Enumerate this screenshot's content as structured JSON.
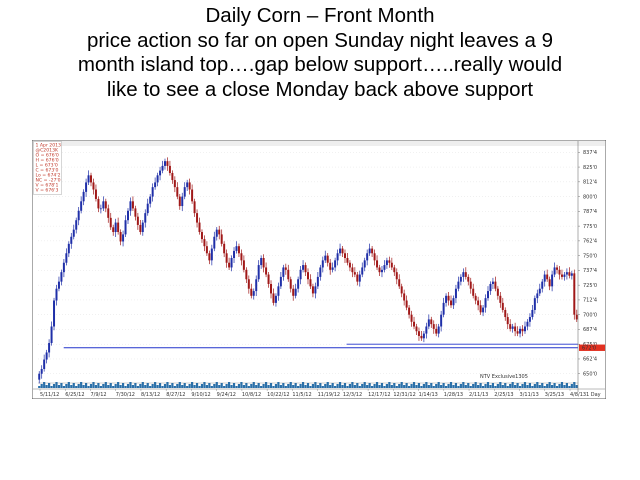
{
  "slide": {
    "title_lines": [
      "Daily Corn – Front Month",
      "price action so far on open Sunday night leaves a 9",
      "month island top….gap below support…..really would",
      "like to see a close Monday back above support"
    ]
  },
  "chart_data": {
    "type": "candlestick",
    "title": "",
    "xlabel": "",
    "ylabel": "",
    "info_box": [
      "1 Apr 2013",
      "@C2013K",
      "O = 676'0",
      "H = 676'0",
      "L = 673'0",
      "C = 673'0",
      "Lo = 674'2",
      "NC = -27'0",
      "V = 678'1",
      "V = 676'3"
    ],
    "y_ticks": [
      "837'4",
      "825'0",
      "812'4",
      "800'0",
      "787'4",
      "775'0",
      "762'4",
      "750'0",
      "737'4",
      "725'0",
      "712'4",
      "700'0",
      "687'4",
      "675'0",
      "662'4",
      "650'0"
    ],
    "ylim": [
      643,
      842
    ],
    "current_price_label": "672'0",
    "x_tick_labels": [
      "5/11/12",
      "6/25/12",
      "7/9/12",
      "7/30/12",
      "8/13/12",
      "8/27/12",
      "9/10/12",
      "9/24/12",
      "10/8/12",
      "10/22/12",
      "11/5/12",
      "11/19/12",
      "12/3/12",
      "12/17/12",
      "12/31/12",
      "1/14/13",
      "1/28/13",
      "2/11/13",
      "2/25/13",
      "3/11/13",
      "3/25/13",
      "4/8/13"
    ],
    "period_label": "1 Day",
    "watermark": "NTV Exclusive1305",
    "support_levels": [
      {
        "from": "6/25/12",
        "to": "4/8/13",
        "price": 672
      },
      {
        "from": "12/3/12",
        "to": "4/8/13",
        "price": 675
      }
    ],
    "colors": {
      "up": "#1f2fa8",
      "down": "#a01818",
      "support": "#2233cc",
      "price_tag": "#e23020",
      "volume": "#2a6fa8",
      "grid": "#dcdcdc"
    },
    "series": {
      "dates_note": "daily bars approx. June 2012 – April 2013",
      "open": [
        645,
        650,
        654,
        662,
        668,
        676,
        690,
        712,
        722,
        728,
        736,
        744,
        752,
        760,
        766,
        772,
        780,
        788,
        796,
        804,
        812,
        818,
        812,
        806,
        798,
        790,
        790,
        796,
        790,
        782,
        774,
        770,
        778,
        770,
        762,
        768,
        780,
        788,
        796,
        790,
        783,
        776,
        770,
        778,
        786,
        794,
        800,
        808,
        812,
        818,
        822,
        826,
        830,
        826,
        820,
        814,
        808,
        800,
        792,
        800,
        808,
        812,
        806,
        796,
        786,
        778,
        770,
        764,
        758,
        752,
        746,
        756,
        766,
        772,
        768,
        760,
        752,
        744,
        740,
        748,
        754,
        758,
        752,
        746,
        738,
        730,
        722,
        716,
        720,
        730,
        742,
        748,
        740,
        734,
        726,
        718,
        710,
        716,
        724,
        732,
        740,
        738,
        730,
        722,
        716,
        722,
        730,
        738,
        742,
        736,
        730,
        724,
        718,
        724,
        732,
        740,
        746,
        750,
        744,
        738,
        740,
        746,
        752,
        756,
        752,
        748,
        744,
        740,
        736,
        734,
        728,
        734,
        740,
        746,
        752,
        756,
        752,
        746,
        740,
        736,
        738,
        742,
        746,
        744,
        740,
        736,
        730,
        724,
        718,
        712,
        706,
        700,
        694,
        690,
        686,
        682,
        680,
        684,
        690,
        696,
        692,
        688,
        684,
        690,
        700,
        710,
        716,
        712,
        708,
        714,
        722,
        728,
        732,
        736,
        732,
        728,
        722,
        716,
        712,
        708,
        702,
        706,
        714,
        720,
        726,
        728,
        722,
        716,
        710,
        704,
        698,
        692,
        688,
        690,
        686,
        684,
        688,
        686,
        690,
        694,
        698,
        704,
        714,
        718,
        722,
        728,
        734,
        730,
        724,
        734,
        740,
        738,
        734,
        732,
        734,
        736,
        733,
        735,
        700
      ],
      "close": [
        650,
        654,
        662,
        668,
        676,
        690,
        712,
        722,
        728,
        736,
        744,
        752,
        760,
        766,
        772,
        780,
        788,
        796,
        804,
        812,
        818,
        812,
        806,
        798,
        790,
        790,
        796,
        790,
        782,
        774,
        770,
        778,
        770,
        762,
        768,
        780,
        788,
        796,
        790,
        783,
        776,
        770,
        778,
        786,
        794,
        800,
        808,
        812,
        818,
        822,
        826,
        830,
        826,
        820,
        814,
        808,
        800,
        792,
        800,
        808,
        812,
        806,
        796,
        786,
        778,
        770,
        764,
        758,
        752,
        746,
        756,
        766,
        772,
        768,
        760,
        752,
        744,
        740,
        748,
        754,
        758,
        752,
        746,
        738,
        730,
        722,
        716,
        720,
        730,
        742,
        748,
        740,
        734,
        726,
        718,
        710,
        716,
        724,
        732,
        740,
        738,
        730,
        722,
        716,
        722,
        730,
        738,
        742,
        736,
        730,
        724,
        718,
        724,
        732,
        740,
        746,
        750,
        744,
        738,
        740,
        746,
        752,
        756,
        752,
        748,
        744,
        740,
        736,
        734,
        728,
        734,
        740,
        746,
        752,
        756,
        752,
        746,
        740,
        736,
        738,
        742,
        746,
        744,
        740,
        736,
        730,
        724,
        718,
        712,
        706,
        700,
        694,
        690,
        686,
        682,
        680,
        684,
        690,
        696,
        692,
        688,
        684,
        690,
        700,
        710,
        716,
        712,
        708,
        714,
        722,
        728,
        732,
        736,
        732,
        728,
        722,
        716,
        712,
        708,
        702,
        706,
        714,
        720,
        726,
        728,
        722,
        716,
        710,
        704,
        698,
        692,
        688,
        690,
        686,
        684,
        688,
        686,
        690,
        694,
        698,
        704,
        714,
        718,
        722,
        728,
        734,
        730,
        724,
        734,
        740,
        738,
        734,
        732,
        734,
        736,
        733,
        735,
        700,
        696
      ]
    }
  }
}
